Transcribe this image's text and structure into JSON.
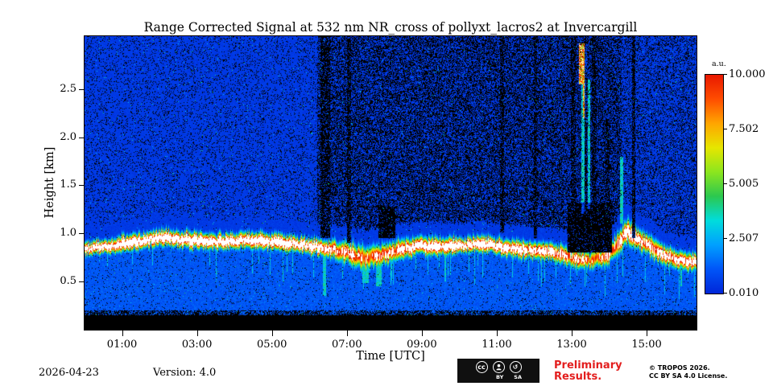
{
  "accent_colors": {
    "preliminary_red": "#e31e1e",
    "frame_black": "#000000",
    "page_background": "#ffffff"
  },
  "footer": {
    "date": "2026-04-23",
    "version": "Version: 4.0",
    "preliminary_line1": "Preliminary",
    "preliminary_line2": "Results.",
    "copyright_line1": "© TROPOS 2026.",
    "copyright_line2": "CC BY SA 4.0 License.",
    "badge": {
      "cc": "cc",
      "by": "BY",
      "sa": "SA"
    }
  },
  "chart_data": {
    "type": "heatmap",
    "title": "Range Corrected Signal at 532 nm NR_cross of pollyxt_lacros2 at Invercargill",
    "xlabel": "Time [UTC]",
    "ylabel": "Height [km]",
    "colorbar_label": "a.u.",
    "x_range_hours": [
      0,
      16.33
    ],
    "y_range_km": [
      0,
      3.05
    ],
    "x_ticks": [
      {
        "hour": 1,
        "label": "01:00"
      },
      {
        "hour": 3,
        "label": "03:00"
      },
      {
        "hour": 5,
        "label": "05:00"
      },
      {
        "hour": 7,
        "label": "07:00"
      },
      {
        "hour": 9,
        "label": "09:00"
      },
      {
        "hour": 11,
        "label": "11:00"
      },
      {
        "hour": 13,
        "label": "13:00"
      },
      {
        "hour": 15,
        "label": "15:00"
      }
    ],
    "y_ticks": [
      {
        "km": 0.5,
        "label": "0.5"
      },
      {
        "km": 1.0,
        "label": "1.0"
      },
      {
        "km": 1.5,
        "label": "1.5"
      },
      {
        "km": 2.0,
        "label": "2.0"
      },
      {
        "km": 2.5,
        "label": "2.5"
      }
    ],
    "colorbar": {
      "min": 0.01,
      "max": 10.0,
      "ticks": [
        {
          "value": 10.0,
          "label": "10.000"
        },
        {
          "value": 7.502,
          "label": "7.502"
        },
        {
          "value": 5.005,
          "label": "5.005"
        },
        {
          "value": 2.507,
          "label": "2.507"
        },
        {
          "value": 0.01,
          "label": "0.010"
        }
      ],
      "stops_bottom_to_top": [
        "#0026d8",
        "#0055f8",
        "#00a0ff",
        "#00dcdc",
        "#2cc84f",
        "#8ce61e",
        "#e6e600",
        "#ffa500",
        "#ff4d00",
        "#e81800"
      ]
    },
    "layer": {
      "hours": [
        0,
        0.5,
        1,
        1.5,
        2,
        2.5,
        3,
        3.5,
        4,
        4.5,
        5,
        5.5,
        6,
        6.5,
        7,
        7.5,
        8,
        8.5,
        9,
        9.5,
        10,
        10.5,
        11,
        11.5,
        12,
        12.5,
        13,
        13.5,
        14,
        14.5,
        15,
        15.5,
        16,
        16.5
      ],
      "center_km": [
        0.84,
        0.86,
        0.89,
        0.92,
        0.96,
        0.94,
        0.92,
        0.91,
        0.92,
        0.93,
        0.91,
        0.89,
        0.87,
        0.84,
        0.8,
        0.74,
        0.78,
        0.84,
        0.87,
        0.86,
        0.87,
        0.89,
        0.87,
        0.84,
        0.82,
        0.8,
        0.74,
        0.71,
        0.78,
        1.02,
        0.88,
        0.76,
        0.71,
        0.69
      ],
      "halfwidth_km": [
        0.07,
        0.07,
        0.08,
        0.08,
        0.08,
        0.08,
        0.08,
        0.08,
        0.08,
        0.08,
        0.08,
        0.08,
        0.08,
        0.09,
        0.11,
        0.12,
        0.11,
        0.1,
        0.09,
        0.09,
        0.08,
        0.08,
        0.08,
        0.09,
        0.09,
        0.09,
        0.1,
        0.09,
        0.1,
        0.12,
        0.1,
        0.1,
        0.09,
        0.09
      ],
      "amplitude_au": [
        12,
        13,
        14,
        14,
        14,
        14,
        14,
        14,
        14,
        14,
        14,
        14,
        13,
        12,
        11,
        10,
        11,
        12,
        13,
        13,
        14,
        14,
        13,
        13,
        12,
        12,
        11,
        10,
        11,
        12,
        12,
        12,
        12,
        12
      ]
    },
    "dim_regions": [
      {
        "t0": 6.2,
        "t1": 13.0,
        "black_prob": 0.5
      },
      {
        "t0": 13.0,
        "t1": 14.35,
        "black_prob": 0.52
      },
      {
        "t0": 14.35,
        "t1": 16.33,
        "black_prob": 0.27
      }
    ],
    "dark_columns": [
      {
        "t0": 6.3,
        "t1": 6.55,
        "h0": 0.95,
        "h1": 3.05
      },
      {
        "t0": 7.0,
        "t1": 7.1,
        "h0": 0.9,
        "h1": 3.05
      },
      {
        "t0": 11.1,
        "t1": 11.2,
        "h0": 1.0,
        "h1": 3.05
      },
      {
        "t0": 12.0,
        "t1": 12.08,
        "h0": 0.95,
        "h1": 3.05
      },
      {
        "t0": 12.98,
        "t1": 13.12,
        "h0": 0.85,
        "h1": 3.05
      },
      {
        "t0": 13.36,
        "t1": 13.42,
        "h0": 1.2,
        "h1": 3.05
      },
      {
        "t0": 13.55,
        "t1": 13.68,
        "h0": 1.3,
        "h1": 3.05
      },
      {
        "t0": 13.9,
        "t1": 14.02,
        "h0": 0.9,
        "h1": 2.2
      },
      {
        "t0": 14.62,
        "t1": 14.7,
        "h0": 0.95,
        "h1": 3.05
      }
    ],
    "black_patches": [
      {
        "t0": 12.9,
        "t1": 14.08,
        "h0": 0.8,
        "h1": 1.32
      },
      {
        "t0": 7.85,
        "t1": 8.3,
        "h0": 0.95,
        "h1": 1.28
      }
    ],
    "cyan_streaks": [
      {
        "t0": 6.36,
        "t1": 6.44,
        "h0": 0.35,
        "h1": 0.8
      },
      {
        "t0": 7.42,
        "t1": 7.58,
        "h0": 0.48,
        "h1": 0.72
      },
      {
        "t0": 7.78,
        "t1": 7.92,
        "h0": 0.45,
        "h1": 0.75
      },
      {
        "t0": 9.6,
        "t1": 9.66,
        "h0": 0.5,
        "h1": 0.78
      },
      {
        "t0": 13.27,
        "t1": 13.34,
        "h0": 1.2,
        "h1": 2.95
      },
      {
        "t0": 13.43,
        "t1": 13.5,
        "h0": 1.25,
        "h1": 2.6
      },
      {
        "t0": 14.3,
        "t1": 14.38,
        "h0": 1.1,
        "h1": 1.8
      },
      {
        "t0": 15.9,
        "t1": 15.96,
        "h0": 0.45,
        "h1": 0.68
      }
    ],
    "bright_patches": [
      {
        "t0": 13.2,
        "t1": 13.42,
        "h0": 2.55,
        "h1": 2.98
      },
      {
        "t0": 13.3,
        "t1": 13.39,
        "h0": 2.2,
        "h1": 2.58
      }
    ],
    "surface_black_km": 0.145,
    "noise": {
      "black_speckle_above": 0.13,
      "black_speckle_below": 0.05,
      "cyan_dot_prob": 0.006
    },
    "background_levels": {
      "below_layer_au": 1.0,
      "above_layer_au": 0.45
    }
  }
}
